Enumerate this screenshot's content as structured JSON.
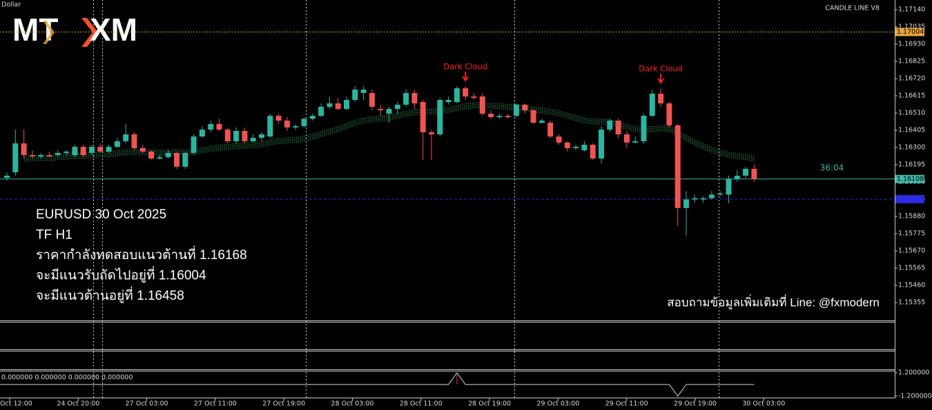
{
  "chart_data": {
    "type": "candlestick",
    "symbol_label": "Dollar",
    "indicator_name": "CANDLE LINE V8",
    "logo": {
      "left": "MT",
      "right": "XM"
    },
    "ylim": [
      1.15246,
      1.17199
    ],
    "yticks": [
      {
        "value": 1.1714,
        "label": "1.17140"
      },
      {
        "value": 1.17035,
        "label": "1.17035"
      },
      {
        "value": 1.1693,
        "label": "1.16930"
      },
      {
        "value": 1.16825,
        "label": "1.16825"
      },
      {
        "value": 1.1672,
        "label": "1.16720"
      },
      {
        "value": 1.16615,
        "label": "1.16615"
      },
      {
        "value": 1.1651,
        "label": "1.16510"
      },
      {
        "value": 1.16405,
        "label": "1.16405"
      },
      {
        "value": 1.163,
        "label": "1.16300"
      },
      {
        "value": 1.16195,
        "label": "1.16195"
      },
      {
        "value": 1.1609,
        "label": "1.16090"
      },
      {
        "value": 1.15985,
        "label": "1.15985"
      },
      {
        "value": 1.1588,
        "label": "1.15880"
      },
      {
        "value": 1.15775,
        "label": "1.15775"
      },
      {
        "value": 1.1567,
        "label": "1.15670"
      },
      {
        "value": 1.15565,
        "label": "1.15565"
      },
      {
        "value": 1.1546,
        "label": "1.15460"
      },
      {
        "value": 1.15355,
        "label": "1.15355"
      }
    ],
    "price_lines": [
      {
        "value": 1.17004,
        "label": "1.17004",
        "color": "#e8a53a"
      },
      {
        "value": 1.16108,
        "label": "1.16108",
        "color": "#3fb8a6"
      },
      {
        "value": 1.15985,
        "color": "#2a2ae0"
      }
    ],
    "countdown": "36:04",
    "colors": {
      "up": "#2bb5a0",
      "down": "#ef5452",
      "band": "#2f8f52"
    },
    "xtick_labels": [
      "Oct 12:00",
      "24 Oct 20:00",
      "27 Oct 03:00",
      "27 Oct 11:00",
      "27 Oct 19:00",
      "28 Oct 03:00",
      "28 Oct 11:00",
      "28 Oct 19:00",
      "29 Oct 03:00",
      "29 Oct 11:00",
      "29 Oct 19:00",
      "30 Oct 03:00"
    ],
    "annotations": [
      {
        "text": "Dark Cloud"
      },
      {
        "text": "Dark Cloud"
      }
    ],
    "ohlc": [
      [
        1.16115,
        1.16149,
        1.16098,
        1.16128
      ],
      [
        1.16149,
        1.1641,
        1.16128,
        1.16325
      ],
      [
        1.16325,
        1.1641,
        1.16233,
        1.16254
      ],
      [
        1.16254,
        1.16283,
        1.16233,
        1.16245
      ],
      [
        1.16245,
        1.16267,
        1.16233,
        1.16254
      ],
      [
        1.16254,
        1.16275,
        1.16241,
        1.16245
      ],
      [
        1.16254,
        1.16283,
        1.16241,
        1.16267
      ],
      [
        1.16267,
        1.16283,
        1.16254,
        1.16275
      ],
      [
        1.16254,
        1.16317,
        1.16241,
        1.16304
      ],
      [
        1.16304,
        1.16317,
        1.16241,
        1.16254
      ],
      [
        1.16267,
        1.16317,
        1.16254,
        1.16304
      ],
      [
        1.16304,
        1.16325,
        1.16267,
        1.16275
      ],
      [
        1.16275,
        1.16317,
        1.16267,
        1.16304
      ],
      [
        1.16304,
        1.16359,
        1.16296,
        1.16338
      ],
      [
        1.16338,
        1.16443,
        1.16325,
        1.1638
      ],
      [
        1.1638,
        1.16393,
        1.16283,
        1.16296
      ],
      [
        1.16296,
        1.16317,
        1.16267,
        1.16275
      ],
      [
        1.16275,
        1.16283,
        1.16225,
        1.16233
      ],
      [
        1.16233,
        1.16254,
        1.16225,
        1.16241
      ],
      [
        1.16241,
        1.16283,
        1.16233,
        1.16267
      ],
      [
        1.16267,
        1.16275,
        1.1617,
        1.16183
      ],
      [
        1.16183,
        1.16275,
        1.1617,
        1.16267
      ],
      [
        1.16267,
        1.1638,
        1.16254,
        1.16367
      ],
      [
        1.16367,
        1.1643,
        1.16359,
        1.16409
      ],
      [
        1.16409,
        1.16464,
        1.16393,
        1.16443
      ],
      [
        1.16443,
        1.16475,
        1.16401,
        1.16409
      ],
      [
        1.16409,
        1.16422,
        1.16325,
        1.16338
      ],
      [
        1.16338,
        1.16422,
        1.16325,
        1.16401
      ],
      [
        1.16401,
        1.16422,
        1.16325,
        1.16338
      ],
      [
        1.16338,
        1.1638,
        1.1633,
        1.16359
      ],
      [
        1.16359,
        1.16393,
        1.16338,
        1.1638
      ],
      [
        1.16367,
        1.16506,
        1.16359,
        1.16493
      ],
      [
        1.16493,
        1.16506,
        1.16443,
        1.16464
      ],
      [
        1.16464,
        1.16485,
        1.16401,
        1.16422
      ],
      [
        1.16422,
        1.16443,
        1.16409,
        1.1643
      ],
      [
        1.1643,
        1.16485,
        1.16422,
        1.16475
      ],
      [
        1.16475,
        1.16506,
        1.16464,
        1.16493
      ],
      [
        1.16493,
        1.16569,
        1.16485,
        1.16548
      ],
      [
        1.16548,
        1.16611,
        1.16535,
        1.16569
      ],
      [
        1.16569,
        1.16603,
        1.16527,
        1.16535
      ],
      [
        1.16535,
        1.16611,
        1.16527,
        1.1659
      ],
      [
        1.1659,
        1.16674,
        1.16577,
        1.16653
      ],
      [
        1.16632,
        1.16674,
        1.1659,
        1.16653
      ],
      [
        1.16632,
        1.16653,
        1.16527,
        1.16548
      ],
      [
        1.16535,
        1.16561,
        1.16493,
        1.16527
      ],
      [
        1.16506,
        1.16548,
        1.16451,
        1.16535
      ],
      [
        1.16535,
        1.16577,
        1.16506,
        1.16561
      ],
      [
        1.16561,
        1.16653,
        1.16548,
        1.16632
      ],
      [
        1.16632,
        1.16653,
        1.16535,
        1.16569
      ],
      [
        1.16577,
        1.1659,
        1.16225,
        1.16393
      ],
      [
        1.16393,
        1.16409,
        1.16225,
        1.1638
      ],
      [
        1.1638,
        1.16603,
        1.16367,
        1.1659
      ],
      [
        1.16577,
        1.16611,
        1.16561,
        1.1659
      ],
      [
        1.16577,
        1.16674,
        1.16569,
        1.16661
      ],
      [
        1.16661,
        1.16674,
        1.1659,
        1.16611
      ],
      [
        1.16611,
        1.16632,
        1.1659,
        1.16603
      ],
      [
        1.16611,
        1.16632,
        1.16493,
        1.16506
      ],
      [
        1.16506,
        1.16527,
        1.16475,
        1.16485
      ],
      [
        1.16485,
        1.16506,
        1.16475,
        1.16493
      ],
      [
        1.16493,
        1.16506,
        1.16475,
        1.16485
      ],
      [
        1.16493,
        1.16569,
        1.16485,
        1.16561
      ],
      [
        1.16561,
        1.16569,
        1.16506,
        1.16527
      ],
      [
        1.16527,
        1.16535,
        1.16443,
        1.16451
      ],
      [
        1.16451,
        1.16475,
        1.16443,
        1.16464
      ],
      [
        1.16451,
        1.16464,
        1.16359,
        1.16367
      ],
      [
        1.16367,
        1.1638,
        1.16317,
        1.1633
      ],
      [
        1.1633,
        1.16338,
        1.16275,
        1.16296
      ],
      [
        1.16296,
        1.16317,
        1.16283,
        1.16304
      ],
      [
        1.16283,
        1.16338,
        1.16275,
        1.16317
      ],
      [
        1.16317,
        1.16325,
        1.16225,
        1.16233
      ],
      [
        1.16233,
        1.1643,
        1.16203,
        1.16409
      ],
      [
        1.16409,
        1.16475,
        1.16393,
        1.16464
      ],
      [
        1.16464,
        1.16475,
        1.16359,
        1.1638
      ],
      [
        1.1638,
        1.16401,
        1.16296,
        1.1633
      ],
      [
        1.1633,
        1.16367,
        1.16325,
        1.16338
      ],
      [
        1.16338,
        1.16506,
        1.16325,
        1.16493
      ],
      [
        1.16493,
        1.16653,
        1.16485,
        1.16628
      ],
      [
        1.16628,
        1.16661,
        1.16548,
        1.16569
      ],
      [
        1.16569,
        1.16577,
        1.16422,
        1.16435
      ],
      [
        1.16435,
        1.16443,
        1.15822,
        1.15931
      ],
      [
        1.15931,
        1.16035,
        1.15763,
        1.15983
      ],
      [
        1.15983,
        1.16013,
        1.15963,
        1.15991
      ],
      [
        1.15983,
        1.16003,
        1.15963,
        1.15991
      ],
      [
        1.15991,
        1.16035,
        1.15983,
        1.16013
      ],
      [
        1.16013,
        1.16035,
        1.16003,
        1.1602
      ],
      [
        1.16013,
        1.16128,
        1.1596,
        1.16107
      ],
      [
        1.16107,
        1.1616,
        1.1609,
        1.16128
      ],
      [
        1.16128,
        1.16183,
        1.16115,
        1.1617
      ],
      [
        1.1617,
        1.16195,
        1.1609,
        1.16108
      ]
    ],
    "oscillator": {
      "legend": "0.000000 0.000000 0.000000 0.000000",
      "ylim": [
        -1.35,
        1.35
      ],
      "yticks": [
        {
          "value": 1.2,
          "label": "1.200000"
        },
        {
          "value": -1.2,
          "label": "-1.200000"
        }
      ],
      "values": [
        0,
        0,
        0,
        0,
        0,
        0,
        0,
        0,
        0,
        0,
        0,
        0,
        0,
        0,
        0,
        0,
        0,
        0,
        0,
        0,
        0,
        0,
        0,
        0,
        0,
        0,
        0,
        0,
        0,
        0,
        0,
        0,
        0,
        0,
        0,
        0,
        0,
        0,
        0,
        0,
        0,
        0,
        0,
        0,
        0,
        0,
        0,
        0,
        0,
        0,
        0,
        0,
        0,
        1.2,
        0,
        0,
        0,
        0,
        0,
        0,
        0,
        0,
        0,
        0,
        0,
        0,
        0,
        0,
        0,
        0,
        0,
        0,
        0,
        0,
        0,
        0,
        0,
        0,
        0,
        -1.2,
        0,
        0,
        0,
        0,
        0,
        0,
        0,
        0,
        0
      ]
    },
    "notes": [
      "EURUSD 30 Oct 2025",
      "TF H1",
      "ราคากำลังทดสอบแนวต้านที่ 1.16168",
      "จะมีแนวรับถัดไปอยู่ที่ 1.16004",
      "จะมีแนวต้านอยู่ที่ 1.16458"
    ],
    "contact": "สอบถามข้อมูลเพิ่มเติมที่ Line: @fxmodern"
  }
}
